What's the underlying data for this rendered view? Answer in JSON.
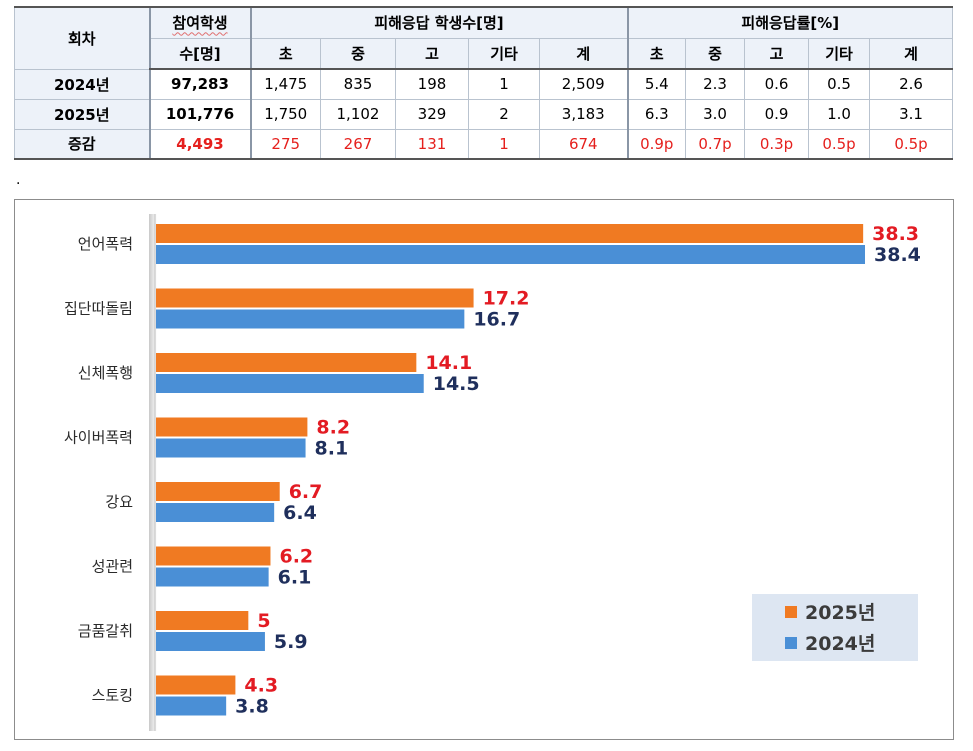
{
  "table": {
    "header": {
      "col_round": "회차",
      "col_participants_line1": "참여학생",
      "col_participants_line2": "수[명]",
      "group_count": "피해응답 학생수[명]",
      "group_rate": "피해응답률[%]",
      "sub_labels": [
        "초",
        "중",
        "고",
        "기타",
        "계",
        "초",
        "중",
        "고",
        "기타",
        "계"
      ]
    },
    "rows": [
      {
        "label": "2024년",
        "participants": "97,283",
        "counts": [
          "1,475",
          "835",
          "198",
          "1",
          "2,509"
        ],
        "rates": [
          "5.4",
          "2.3",
          "0.6",
          "0.5",
          "2.6"
        ]
      },
      {
        "label": "2025년",
        "participants": "101,776",
        "counts": [
          "1,750",
          "1,102",
          "329",
          "2",
          "3,183"
        ],
        "rates": [
          "6.3",
          "3.0",
          "0.9",
          "1.0",
          "3.1"
        ]
      },
      {
        "label": "증감",
        "participants": "4,493",
        "counts": [
          "275",
          "267",
          "131",
          "1",
          "674"
        ],
        "rates": [
          "0.9p",
          "0.7p",
          "0.3p",
          "0.5p",
          "0.5p"
        ]
      }
    ],
    "colors": {
      "header_bg": "#edf2f9",
      "increase_text": "#e5201d"
    }
  },
  "separator_text": ".",
  "chart_data": {
    "type": "bar",
    "orientation": "horizontal",
    "categories": [
      "언어폭력",
      "집단따돌림",
      "신체폭행",
      "사이버폭력",
      "강요",
      "성관련",
      "금품갈취",
      "스토킹"
    ],
    "series": [
      {
        "name": "2025년",
        "values": [
          38.3,
          17.2,
          14.1,
          8.2,
          6.7,
          6.2,
          5,
          4.3
        ],
        "color": "#f07a22",
        "label_color": "#e31b23"
      },
      {
        "name": "2024년",
        "values": [
          38.4,
          16.7,
          14.5,
          8.1,
          6.4,
          6.1,
          5.9,
          3.8
        ],
        "color": "#4a8fd6",
        "label_color": "#1f2f5c"
      }
    ],
    "title": "",
    "xlabel": "",
    "ylabel": "",
    "xlim": [
      0,
      38.4
    ],
    "grid": false,
    "legend_position": "bottom-right"
  }
}
